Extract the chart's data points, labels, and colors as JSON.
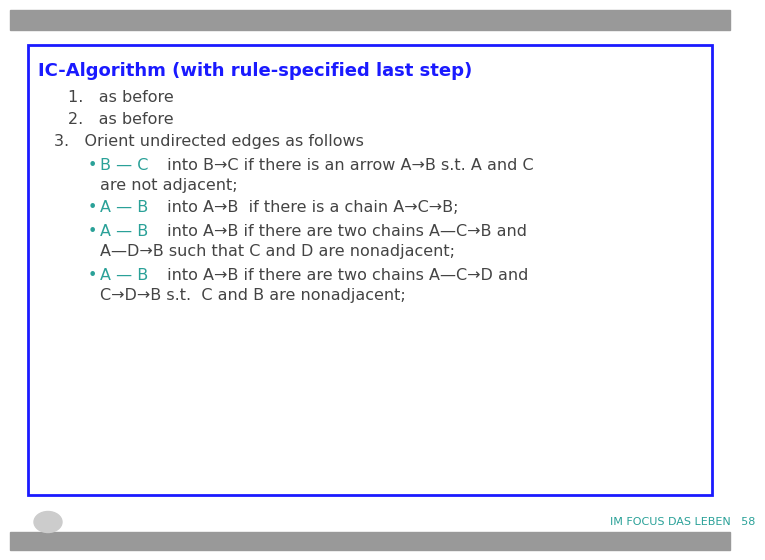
{
  "title": "IC-Algorithm (with rule-specified last step)",
  "title_color": "#1a1aff",
  "step1": "as before",
  "step2": "as before",
  "step3": "Orient undirected edges as follows",
  "teal_color": "#2aa198",
  "dark_gray": "#444444",
  "box_border_color": "#1a1aff",
  "bg_color": "#ffffff",
  "footer_text": "IM FOCUS DAS LEBEN   58",
  "footer_color": "#2aa198",
  "bar_color": "#999999"
}
